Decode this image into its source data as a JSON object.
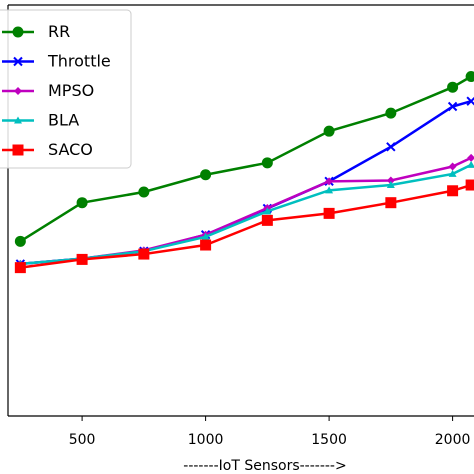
{
  "chart_data": {
    "type": "line",
    "xlabel": "-------IoT Sensors------->",
    "ylabel": "",
    "xlim": [
      0,
      2075
    ],
    "ylim": [
      0,
      100
    ],
    "x_ticks": [
      500,
      1000,
      1500,
      2000
    ],
    "x_tick_labels": [
      "500",
      "1000",
      "1500",
      "2000"
    ],
    "grid": false,
    "legend_position": "top-left",
    "series": [
      {
        "name": "RR",
        "color": "#008000",
        "marker": "circle",
        "x": [
          250,
          500,
          750,
          1000,
          1250,
          1500,
          1750,
          2000,
          2075
        ],
        "y": [
          42.5,
          51.9,
          54.5,
          58.7,
          61.6,
          69.3,
          73.7,
          80.0,
          82.6
        ]
      },
      {
        "name": "Throttle",
        "color": "#0000ff",
        "marker": "x",
        "x": [
          250,
          500,
          750,
          1000,
          1250,
          1500,
          1750,
          2000,
          2075
        ],
        "y": [
          37.0,
          38.3,
          40.1,
          44.1,
          50.5,
          57.1,
          65.5,
          75.3,
          76.6
        ]
      },
      {
        "name": "MPSO",
        "color": "#bf00bf",
        "marker": "diamond",
        "x": [
          250,
          500,
          750,
          1000,
          1250,
          1500,
          1750,
          2000,
          2075
        ],
        "y": [
          37.0,
          38.3,
          40.3,
          44.1,
          50.6,
          57.1,
          57.3,
          60.7,
          62.8
        ]
      },
      {
        "name": "BLA",
        "color": "#00bfbf",
        "marker": "triangle",
        "x": [
          250,
          500,
          750,
          1000,
          1250,
          1500,
          1750,
          2000,
          2075
        ],
        "y": [
          37.0,
          38.3,
          40.1,
          43.6,
          49.8,
          54.9,
          56.2,
          58.9,
          61.1
        ]
      },
      {
        "name": "SACO",
        "color": "#ff0000",
        "marker": "square",
        "x": [
          250,
          500,
          750,
          1000,
          1250,
          1500,
          1750,
          2000,
          2075
        ],
        "y": [
          36.1,
          38.1,
          39.4,
          41.6,
          47.6,
          49.3,
          51.9,
          54.8,
          56.2
        ]
      }
    ]
  }
}
